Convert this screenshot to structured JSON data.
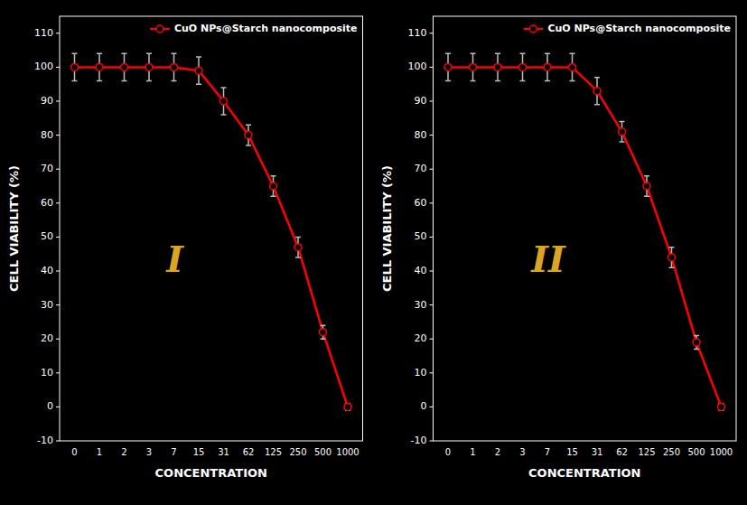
{
  "chart_data": [
    {
      "type": "line",
      "background": "#000000",
      "annotation": "I",
      "x_label": "CONCENTRATION",
      "y_label": "CELL VIABILITY (%)",
      "categories": [
        "0",
        "1",
        "2",
        "3",
        "7",
        "15",
        "31",
        "62",
        "125",
        "250",
        "500",
        "1000"
      ],
      "series": [
        {
          "name": "CuO NPs@Starch nanocomposite",
          "color": "#FF0000",
          "marker": "circle",
          "values": [
            100,
            100,
            100,
            100,
            100,
            99,
            90,
            80,
            65,
            47,
            22,
            0
          ],
          "errors": [
            4,
            4,
            4,
            4,
            4,
            4,
            4,
            3,
            3,
            3,
            2,
            1
          ]
        }
      ],
      "ylim": [
        -10,
        115
      ],
      "yticks": [
        -10,
        0,
        10,
        20,
        30,
        40,
        50,
        60,
        70,
        80,
        90,
        100,
        110
      ],
      "grid": false,
      "legend": "upper right"
    },
    {
      "type": "line",
      "background": "#000000",
      "annotation": "II",
      "x_label": "CONCENTRATION",
      "y_label": "CELL VIABILITY (%)",
      "categories": [
        "0",
        "1",
        "2",
        "3",
        "7",
        "15",
        "31",
        "62",
        "125",
        "250",
        "500",
        "1000"
      ],
      "series": [
        {
          "name": "CuO NPs@Starch nanocomposite",
          "color": "#FF0000",
          "marker": "circle",
          "values": [
            100,
            100,
            100,
            100,
            100,
            100,
            93,
            81,
            65,
            44,
            19,
            0
          ],
          "errors": [
            4,
            4,
            4,
            4,
            4,
            4,
            4,
            3,
            3,
            3,
            2,
            1
          ]
        }
      ],
      "ylim": [
        -10,
        115
      ],
      "yticks": [
        -10,
        0,
        10,
        20,
        30,
        40,
        50,
        60,
        70,
        80,
        90,
        100,
        110
      ],
      "grid": false,
      "legend": "upper right"
    }
  ]
}
